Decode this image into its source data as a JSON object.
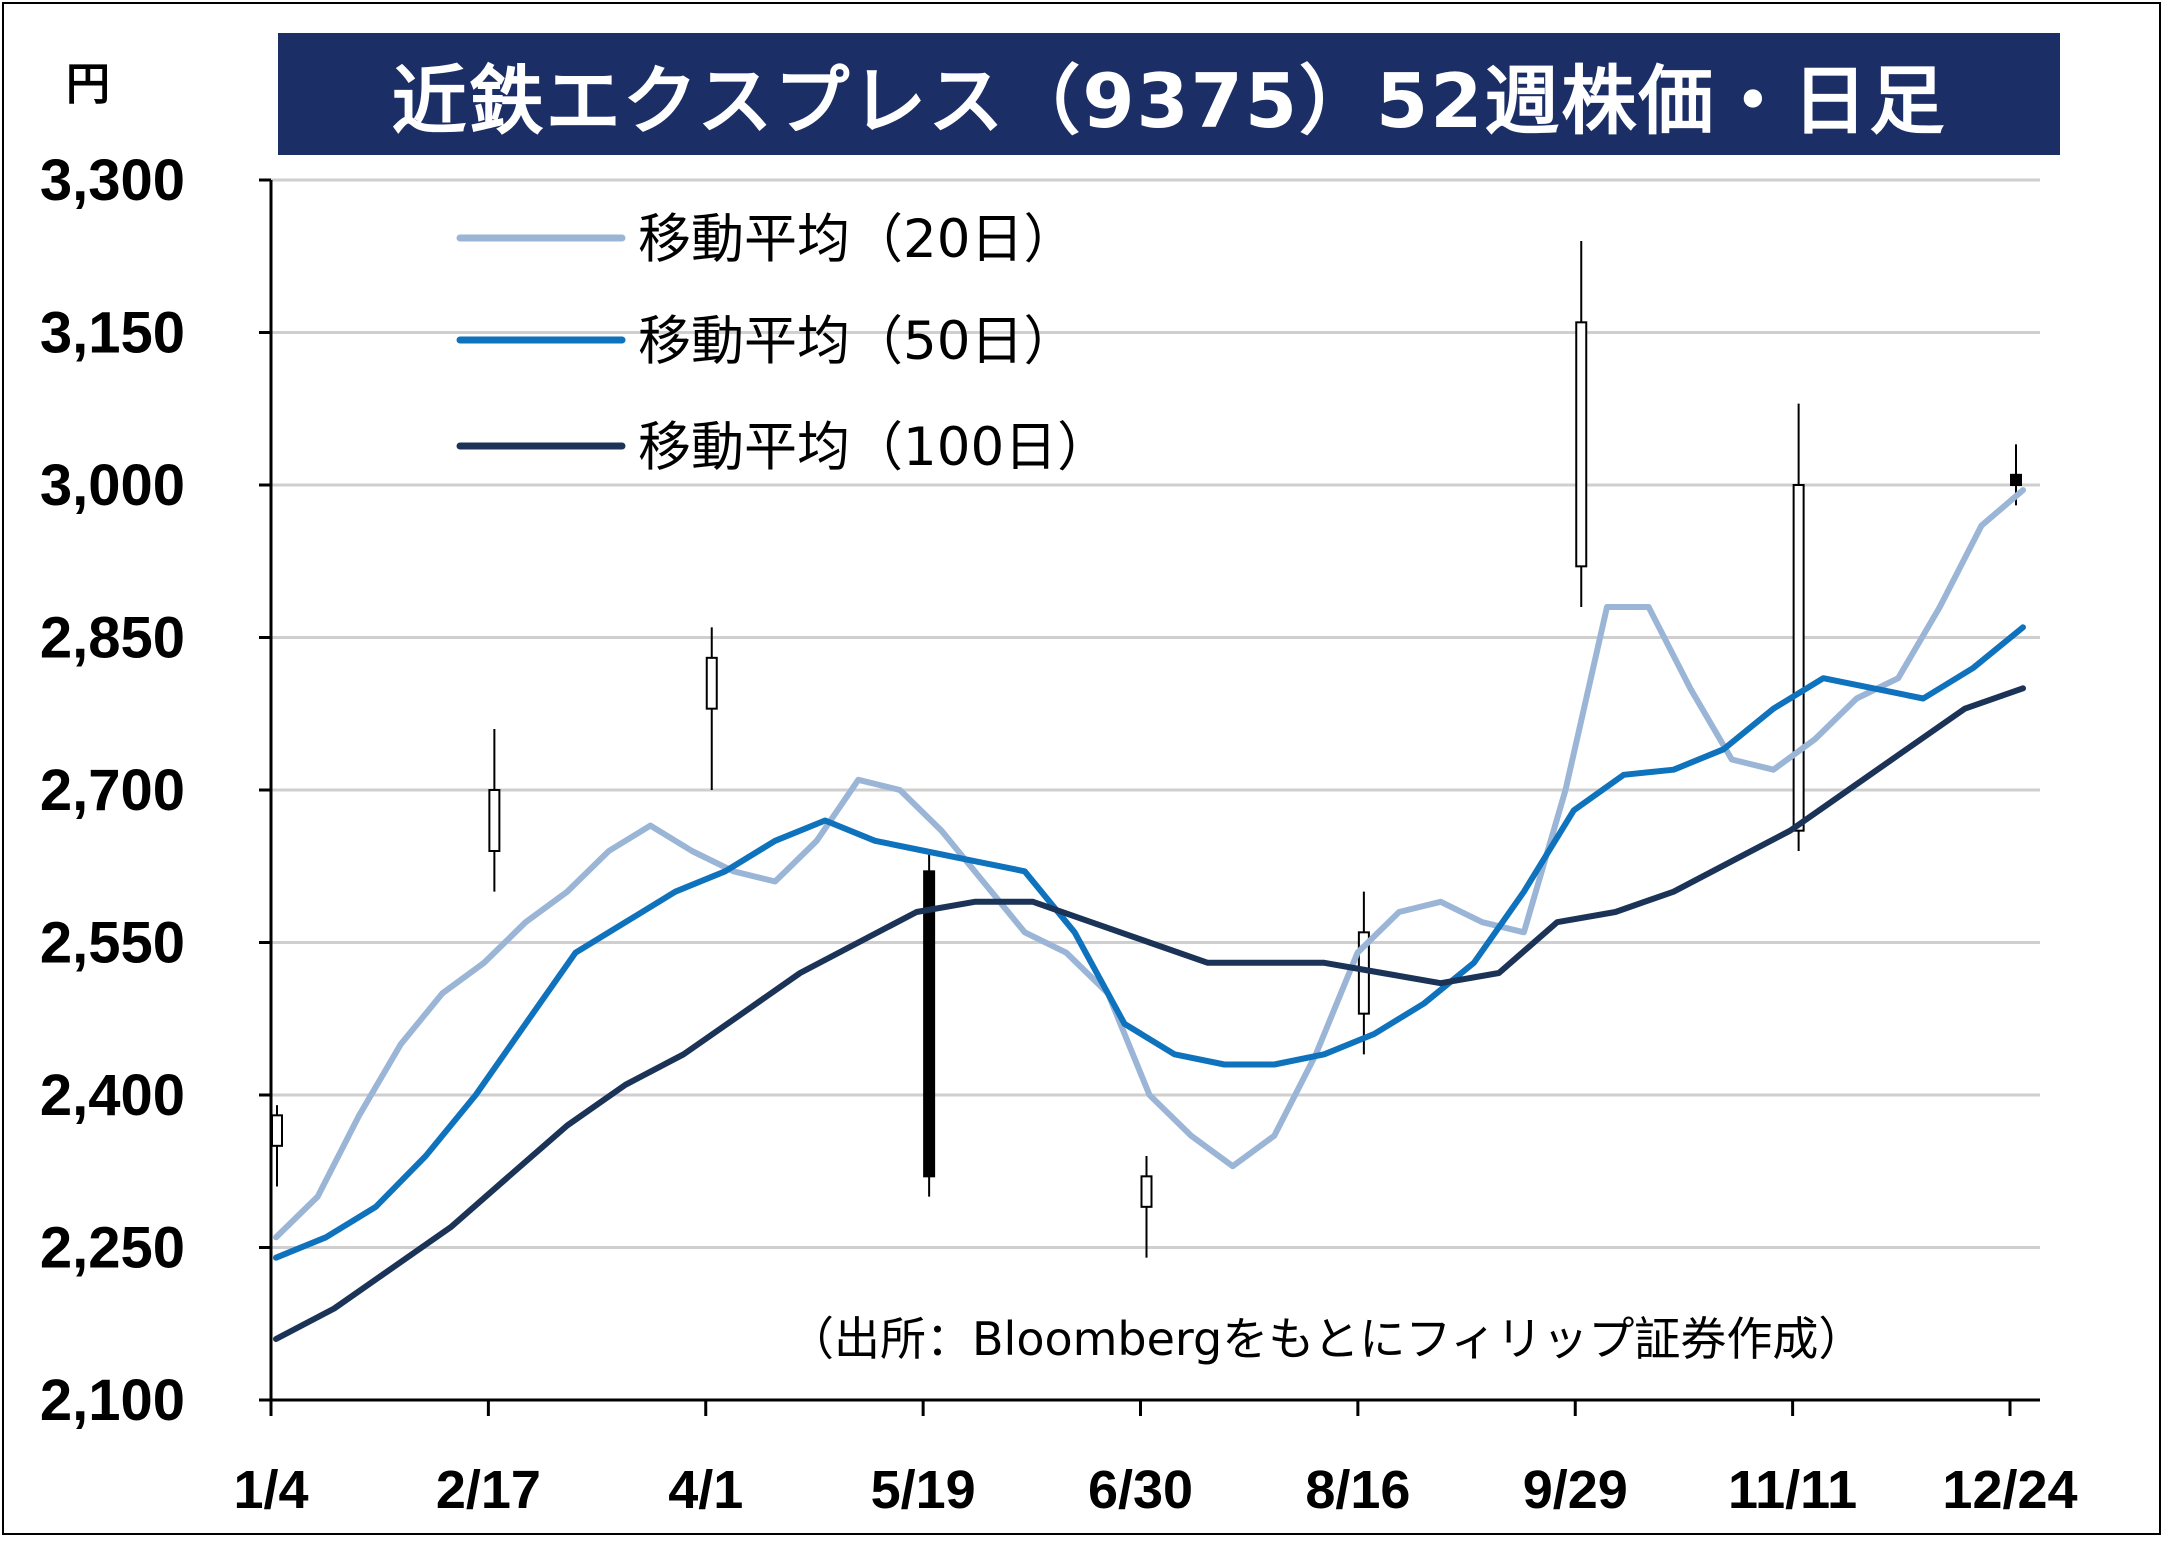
{
  "header": {
    "title": "近鉄エクスプレス（9375）52週株価・日足",
    "unit": "円"
  },
  "source_note": "（出所：Bloombergをもとにフィリップ証券作成）",
  "colors": {
    "title_bg": "#1c2e66",
    "ma20": "#9bb5d6",
    "ma50": "#0e72bd",
    "ma100": "#1c3358",
    "candle": "#000000",
    "grid": "#cfcfcf"
  },
  "chart_data": {
    "type": "candlestick",
    "title": "近鉄エクスプレス（9375）52週株価・日足",
    "ylabel": "円",
    "ylim": [
      2100,
      3300
    ],
    "yticks": [
      2100,
      2250,
      2400,
      2550,
      2700,
      2850,
      3000,
      3150,
      3300
    ],
    "ytick_labels": [
      "2,100",
      "2,250",
      "2,400",
      "2,550",
      "2,700",
      "2,850",
      "3,000",
      "3,150",
      "3,300"
    ],
    "xticks": [
      "1/4",
      "2/17",
      "4/1",
      "5/19",
      "6/30",
      "8/16",
      "9/29",
      "11/11",
      "12/24"
    ],
    "grid": true,
    "legend_position": "top-left",
    "series": [
      {
        "name": "移動平均（20日）",
        "label": "移動平均（20日）",
        "color": "#9bb5d6",
        "values": [
          2260,
          2300,
          2380,
          2450,
          2500,
          2530,
          2570,
          2600,
          2640,
          2665,
          2640,
          2620,
          2610,
          2650,
          2710,
          2700,
          2660,
          2610,
          2560,
          2540,
          2500,
          2400,
          2360,
          2330,
          2360,
          2440,
          2540,
          2580,
          2590,
          2570,
          2560,
          2700,
          2880,
          2880,
          2800,
          2730,
          2720,
          2750,
          2790,
          2810,
          2880,
          2960,
          2995
        ]
      },
      {
        "name": "移動平均（50日）",
        "label": "移動平均（50日）",
        "color": "#0e72bd",
        "values": [
          2240,
          2260,
          2290,
          2340,
          2400,
          2470,
          2540,
          2570,
          2600,
          2620,
          2650,
          2670,
          2650,
          2640,
          2630,
          2620,
          2560,
          2470,
          2440,
          2430,
          2430,
          2440,
          2460,
          2490,
          2530,
          2600,
          2680,
          2715,
          2720,
          2740,
          2780,
          2810,
          2800,
          2790,
          2820,
          2860
        ]
      },
      {
        "name": "移動平均（100日）",
        "label": "移動平均（100日）",
        "color": "#1c3358",
        "values": [
          2160,
          2190,
          2230,
          2270,
          2320,
          2370,
          2410,
          2440,
          2480,
          2520,
          2550,
          2580,
          2590,
          2590,
          2570,
          2550,
          2530,
          2530,
          2530,
          2520,
          2510,
          2520,
          2570,
          2580,
          2600,
          2630,
          2660,
          2700,
          2740,
          2780,
          2800
        ]
      }
    ],
    "candles": [
      {
        "x": "1/4",
        "o": 2350,
        "h": 2390,
        "l": 2310,
        "c": 2380
      },
      {
        "x": "2/17",
        "o": 2640,
        "h": 2760,
        "l": 2600,
        "c": 2700
      },
      {
        "x": "4/1",
        "o": 2780,
        "h": 2860,
        "l": 2700,
        "c": 2830
      },
      {
        "x": "5/19",
        "o": 2620,
        "h": 2640,
        "l": 2300,
        "c": 2320
      },
      {
        "x": "6/30",
        "o": 2290,
        "h": 2340,
        "l": 2240,
        "c": 2320
      },
      {
        "x": "8/16",
        "o": 2480,
        "h": 2600,
        "l": 2440,
        "c": 2560
      },
      {
        "x": "9/29",
        "o": 2920,
        "h": 3240,
        "l": 2880,
        "c": 3160
      },
      {
        "x": "11/11",
        "o": 2660,
        "h": 3080,
        "l": 2640,
        "c": 3000
      },
      {
        "x": "12/24",
        "o": 3010,
        "h": 3040,
        "l": 2980,
        "c": 3000
      }
    ]
  }
}
